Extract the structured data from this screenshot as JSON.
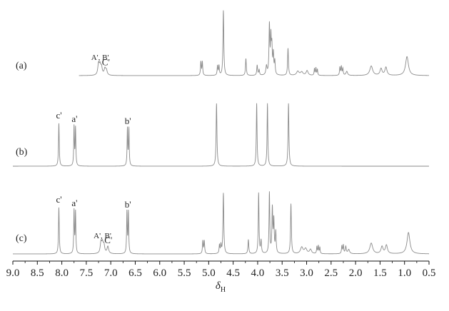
{
  "chart_data": {
    "type": "line",
    "title": "",
    "xlabel": "δ",
    "xlabel_subscript": "H",
    "x_reversed": true,
    "xlim": [
      9.0,
      0.5
    ],
    "xticks": [
      "9.0",
      "8.5",
      "8.0",
      "7.5",
      "7.0",
      "6.5",
      "6.0",
      "5.5",
      "5.0",
      "4.5",
      "4.0",
      "3.5",
      "3.0",
      "2.5",
      "2.0",
      "1.5",
      "1.0",
      "0.5"
    ],
    "ylabel": "",
    "grid": false,
    "color": "#8a8a8a",
    "series": [
      {
        "panel_label": "(a)",
        "range": [
          7.65,
          0.5
        ],
        "peaks": [
          {
            "x": 7.25,
            "h": 0.16,
            "w": 0.018
          },
          {
            "x": 7.22,
            "h": 0.13,
            "w": 0.018
          },
          {
            "x": 7.19,
            "h": 0.11,
            "w": 0.018
          },
          {
            "x": 7.12,
            "h": 0.09,
            "w": 0.02
          },
          {
            "x": 7.09,
            "h": 0.07,
            "w": 0.02
          },
          {
            "x": 5.16,
            "h": 0.2,
            "w": 0.009
          },
          {
            "x": 5.13,
            "h": 0.2,
            "w": 0.009
          },
          {
            "x": 4.82,
            "h": 0.14,
            "w": 0.009
          },
          {
            "x": 4.79,
            "h": 0.14,
            "w": 0.009
          },
          {
            "x": 4.7,
            "h": 0.96,
            "w": 0.01
          },
          {
            "x": 4.24,
            "h": 0.25,
            "w": 0.01
          },
          {
            "x": 4.01,
            "h": 0.15,
            "w": 0.01
          },
          {
            "x": 3.97,
            "h": 0.08,
            "w": 0.01
          },
          {
            "x": 3.82,
            "h": 0.13,
            "w": 0.014
          },
          {
            "x": 3.76,
            "h": 0.72,
            "w": 0.01
          },
          {
            "x": 3.73,
            "h": 0.52,
            "w": 0.01
          },
          {
            "x": 3.71,
            "h": 0.38,
            "w": 0.01
          },
          {
            "x": 3.68,
            "h": 0.3,
            "w": 0.01
          },
          {
            "x": 3.65,
            "h": 0.2,
            "w": 0.01
          },
          {
            "x": 3.38,
            "h": 0.4,
            "w": 0.01
          },
          {
            "x": 3.18,
            "h": 0.06,
            "w": 0.03
          },
          {
            "x": 3.1,
            "h": 0.05,
            "w": 0.03
          },
          {
            "x": 2.99,
            "h": 0.07,
            "w": 0.025
          },
          {
            "x": 2.84,
            "h": 0.1,
            "w": 0.008
          },
          {
            "x": 2.81,
            "h": 0.11,
            "w": 0.008
          },
          {
            "x": 2.78,
            "h": 0.09,
            "w": 0.008
          },
          {
            "x": 2.32,
            "h": 0.12,
            "w": 0.009
          },
          {
            "x": 2.29,
            "h": 0.13,
            "w": 0.009
          },
          {
            "x": 2.26,
            "h": 0.1,
            "w": 0.009
          },
          {
            "x": 2.18,
            "h": 0.06,
            "w": 0.02
          },
          {
            "x": 1.68,
            "h": 0.14,
            "w": 0.035
          },
          {
            "x": 1.48,
            "h": 0.1,
            "w": 0.025
          },
          {
            "x": 1.38,
            "h": 0.12,
            "w": 0.025
          },
          {
            "x": 0.95,
            "h": 0.28,
            "w": 0.035
          }
        ],
        "annotations": [
          {
            "text": "A', B'",
            "x": 7.22
          },
          {
            "text": "C'",
            "x": 7.1
          }
        ]
      },
      {
        "panel_label": "(b)",
        "range": [
          9.0,
          0.5
        ],
        "peaks": [
          {
            "x": 8.06,
            "h": 0.6,
            "w": 0.009
          },
          {
            "x": 7.75,
            "h": 0.55,
            "w": 0.008
          },
          {
            "x": 7.72,
            "h": 0.53,
            "w": 0.008
          },
          {
            "x": 6.66,
            "h": 0.52,
            "w": 0.008
          },
          {
            "x": 6.63,
            "h": 0.52,
            "w": 0.008
          },
          {
            "x": 4.84,
            "h": 0.88,
            "w": 0.01
          },
          {
            "x": 4.02,
            "h": 0.88,
            "w": 0.009
          },
          {
            "x": 3.8,
            "h": 0.88,
            "w": 0.009
          },
          {
            "x": 3.37,
            "h": 0.88,
            "w": 0.01
          }
        ],
        "annotations": [
          {
            "text": "c'",
            "x": 8.06
          },
          {
            "text": "a'",
            "x": 7.74
          },
          {
            "text": "b'",
            "x": 6.65
          }
        ]
      },
      {
        "panel_label": "(c)",
        "range": [
          9.0,
          0.5
        ],
        "peaks": [
          {
            "x": 8.06,
            "h": 0.65,
            "w": 0.009
          },
          {
            "x": 7.75,
            "h": 0.6,
            "w": 0.008
          },
          {
            "x": 7.72,
            "h": 0.58,
            "w": 0.008
          },
          {
            "x": 7.2,
            "h": 0.15,
            "w": 0.018
          },
          {
            "x": 7.17,
            "h": 0.13,
            "w": 0.018
          },
          {
            "x": 7.14,
            "h": 0.11,
            "w": 0.018
          },
          {
            "x": 7.06,
            "h": 0.1,
            "w": 0.02
          },
          {
            "x": 6.67,
            "h": 0.58,
            "w": 0.008
          },
          {
            "x": 6.64,
            "h": 0.58,
            "w": 0.008
          },
          {
            "x": 5.12,
            "h": 0.18,
            "w": 0.009
          },
          {
            "x": 5.09,
            "h": 0.18,
            "w": 0.009
          },
          {
            "x": 4.78,
            "h": 0.12,
            "w": 0.009
          },
          {
            "x": 4.75,
            "h": 0.12,
            "w": 0.009
          },
          {
            "x": 4.7,
            "h": 0.85,
            "w": 0.01
          },
          {
            "x": 4.19,
            "h": 0.2,
            "w": 0.01
          },
          {
            "x": 3.98,
            "h": 0.85,
            "w": 0.009
          },
          {
            "x": 3.93,
            "h": 0.18,
            "w": 0.01
          },
          {
            "x": 3.76,
            "h": 0.85,
            "w": 0.009
          },
          {
            "x": 3.7,
            "h": 0.62,
            "w": 0.01
          },
          {
            "x": 3.67,
            "h": 0.45,
            "w": 0.01
          },
          {
            "x": 3.63,
            "h": 0.3,
            "w": 0.01
          },
          {
            "x": 3.32,
            "h": 0.7,
            "w": 0.01
          },
          {
            "x": 3.1,
            "h": 0.09,
            "w": 0.03
          },
          {
            "x": 3.02,
            "h": 0.07,
            "w": 0.03
          },
          {
            "x": 2.92,
            "h": 0.06,
            "w": 0.025
          },
          {
            "x": 2.79,
            "h": 0.1,
            "w": 0.008
          },
          {
            "x": 2.76,
            "h": 0.11,
            "w": 0.008
          },
          {
            "x": 2.73,
            "h": 0.09,
            "w": 0.008
          },
          {
            "x": 2.28,
            "h": 0.11,
            "w": 0.009
          },
          {
            "x": 2.25,
            "h": 0.12,
            "w": 0.009
          },
          {
            "x": 2.2,
            "h": 0.1,
            "w": 0.012
          },
          {
            "x": 2.14,
            "h": 0.06,
            "w": 0.02
          },
          {
            "x": 1.68,
            "h": 0.15,
            "w": 0.035
          },
          {
            "x": 1.46,
            "h": 0.1,
            "w": 0.025
          },
          {
            "x": 1.37,
            "h": 0.12,
            "w": 0.025
          },
          {
            "x": 0.92,
            "h": 0.3,
            "w": 0.035
          }
        ],
        "annotations": [
          {
            "text": "c'",
            "x": 8.06
          },
          {
            "text": "a'",
            "x": 7.74
          },
          {
            "text": "A', B'",
            "x": 7.17
          },
          {
            "text": "C'",
            "x": 7.05
          },
          {
            "text": "b'",
            "x": 6.65
          }
        ]
      }
    ]
  }
}
